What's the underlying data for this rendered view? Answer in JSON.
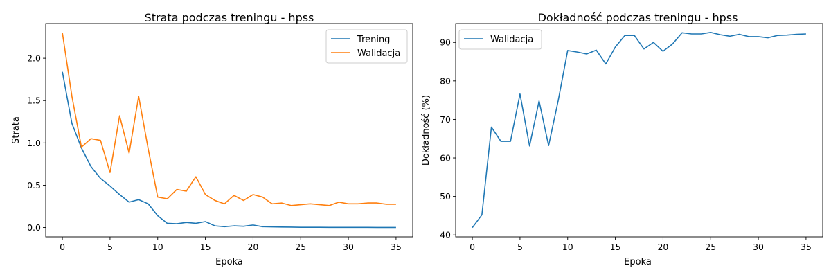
{
  "chart_data": [
    {
      "type": "line",
      "title": "Strata podczas treningu - hpss",
      "xlabel": "Epoka",
      "ylabel": "Strata",
      "xlim": [
        -1.75,
        36.75
      ],
      "ylim": [
        -0.11,
        2.41
      ],
      "xticks": [
        0,
        5,
        10,
        15,
        20,
        25,
        30,
        35
      ],
      "yticks": [
        0.0,
        0.5,
        1.0,
        1.5,
        2.0
      ],
      "ytick_labels": [
        "0.0",
        "0.5",
        "1.0",
        "1.5",
        "2.0"
      ],
      "grid": false,
      "legend_position": "top-right",
      "x": [
        0,
        1,
        2,
        3,
        4,
        5,
        6,
        7,
        8,
        9,
        10,
        11,
        12,
        13,
        14,
        15,
        16,
        17,
        18,
        19,
        20,
        21,
        22,
        23,
        24,
        25,
        26,
        27,
        28,
        29,
        30,
        31,
        32,
        33,
        34,
        35
      ],
      "series": [
        {
          "name": "Trening",
          "color": "#1f77b4",
          "values": [
            1.84,
            1.23,
            0.94,
            0.72,
            0.58,
            0.49,
            0.39,
            0.3,
            0.33,
            0.28,
            0.14,
            0.05,
            0.045,
            0.06,
            0.05,
            0.07,
            0.02,
            0.01,
            0.02,
            0.015,
            0.03,
            0.01,
            0.008,
            0.006,
            0.005,
            0.003,
            0.003,
            0.003,
            0.002,
            0.002,
            0.002,
            0.002,
            0.002,
            0.001,
            0.001,
            0.001
          ]
        },
        {
          "name": "Walidacja",
          "color": "#ff7f0e",
          "values": [
            2.3,
            1.55,
            0.95,
            1.05,
            1.03,
            0.65,
            1.32,
            0.88,
            1.55,
            0.93,
            0.36,
            0.34,
            0.45,
            0.43,
            0.6,
            0.39,
            0.32,
            0.28,
            0.38,
            0.32,
            0.39,
            0.36,
            0.28,
            0.29,
            0.26,
            0.27,
            0.28,
            0.27,
            0.26,
            0.3,
            0.28,
            0.28,
            0.29,
            0.29,
            0.275,
            0.275
          ]
        }
      ]
    },
    {
      "type": "line",
      "title": "Dokładność podczas treningu - hpss",
      "xlabel": "Epoka",
      "ylabel": "Dokładność (%)",
      "xlim": [
        -1.75,
        36.75
      ],
      "ylim": [
        39.5,
        94.9
      ],
      "xticks": [
        0,
        5,
        10,
        15,
        20,
        25,
        30,
        35
      ],
      "yticks": [
        40,
        50,
        60,
        70,
        80,
        90
      ],
      "ytick_labels": [
        "40",
        "50",
        "60",
        "70",
        "80",
        "90"
      ],
      "grid": false,
      "legend_position": "top-left",
      "x": [
        0,
        1,
        2,
        3,
        4,
        5,
        6,
        7,
        8,
        9,
        10,
        11,
        12,
        13,
        14,
        15,
        16,
        17,
        18,
        19,
        20,
        21,
        22,
        23,
        24,
        25,
        26,
        27,
        28,
        29,
        30,
        31,
        32,
        33,
        34,
        35
      ],
      "series": [
        {
          "name": "Walidacja",
          "color": "#1f77b4",
          "values": [
            41.9,
            45.2,
            68.0,
            64.3,
            64.3,
            76.6,
            63.1,
            74.8,
            63.2,
            74.8,
            87.9,
            87.5,
            87.0,
            88.0,
            84.4,
            88.8,
            91.8,
            91.8,
            88.3,
            90.0,
            87.7,
            89.6,
            92.5,
            92.2,
            92.2,
            92.6,
            92.0,
            91.6,
            92.1,
            91.5,
            91.5,
            91.2,
            91.8,
            91.9,
            92.1,
            92.2
          ]
        }
      ]
    }
  ]
}
